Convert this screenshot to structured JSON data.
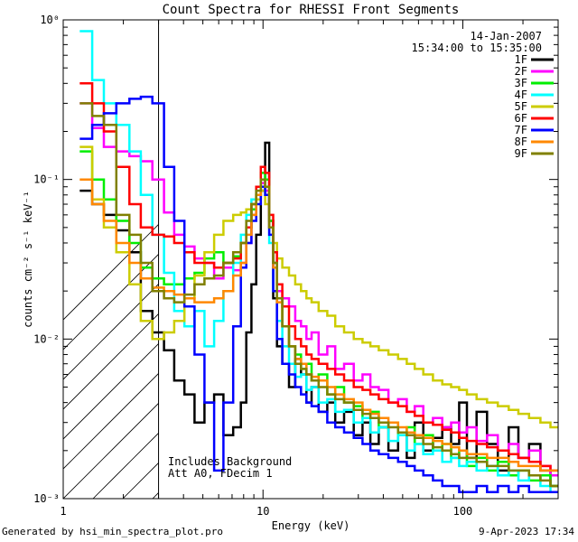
{
  "chart_data": {
    "type": "line",
    "style": "step",
    "title": "Count Spectra for RHESSI Front Segments",
    "xlabel": "Energy (keV)",
    "ylabel": "counts cm⁻² s⁻¹ keV⁻¹",
    "xscale": "log",
    "yscale": "log",
    "xlim": [
      1,
      300
    ],
    "ylim": [
      0.001,
      1
    ],
    "x_ticks": [
      {
        "value": 1,
        "label": "1"
      },
      {
        "value": 10,
        "label": "10"
      },
      {
        "value": 100,
        "label": "100"
      }
    ],
    "y_ticks": [
      {
        "value": 0.001,
        "label": "10⁻³"
      },
      {
        "value": 0.01,
        "label": "10⁻²"
      },
      {
        "value": 0.1,
        "label": "10⁻¹"
      },
      {
        "value": 1,
        "label": "10⁰"
      }
    ],
    "date": "14-Jan-2007",
    "time_range": "15:34:00 to 15:35:00",
    "annotation_lines": [
      "Includes Background",
      "Att A0, FDecim 1"
    ],
    "hatch_region": [
      1,
      3
    ],
    "series": [
      {
        "name": "1F",
        "color": "#000000",
        "x": [
          1.3,
          1.5,
          1.7,
          2.0,
          2.3,
          2.6,
          3.0,
          3.4,
          3.8,
          4.3,
          4.8,
          5.4,
          6.0,
          6.7,
          7.5,
          8.0,
          8.5,
          9.0,
          9.5,
          10.0,
          10.5,
          11.0,
          11.5,
          12.0,
          13,
          14,
          15,
          16,
          17,
          18,
          20,
          22,
          24,
          27,
          30,
          33,
          36,
          40,
          45,
          50,
          55,
          60,
          67,
          75,
          83,
          92,
          100,
          110,
          125,
          140,
          160,
          180,
          200,
          230,
          260,
          290
        ],
        "y": [
          0.085,
          0.07,
          0.06,
          0.048,
          0.035,
          0.015,
          0.011,
          0.0085,
          0.0055,
          0.0045,
          0.003,
          0.004,
          0.0045,
          0.0025,
          0.0028,
          0.004,
          0.011,
          0.022,
          0.045,
          0.085,
          0.17,
          0.055,
          0.018,
          0.009,
          0.007,
          0.005,
          0.0075,
          0.006,
          0.004,
          0.005,
          0.0035,
          0.004,
          0.003,
          0.0035,
          0.0025,
          0.003,
          0.0022,
          0.0028,
          0.002,
          0.0025,
          0.0018,
          0.003,
          0.002,
          0.0024,
          0.0028,
          0.0022,
          0.004,
          0.0018,
          0.0035,
          0.0022,
          0.0015,
          0.0028,
          0.0018,
          0.0022,
          0.0015,
          0.0012
        ]
      },
      {
        "name": "2F",
        "color": "#ff00ff",
        "x": [
          1.3,
          1.5,
          1.7,
          2.0,
          2.3,
          2.6,
          3.0,
          3.4,
          3.8,
          4.3,
          4.8,
          5.4,
          6.0,
          6.7,
          7.5,
          8.0,
          8.5,
          9.0,
          9.5,
          10.0,
          10.5,
          11.0,
          11.5,
          12.0,
          13,
          14,
          15,
          16,
          17,
          18,
          20,
          22,
          24,
          27,
          30,
          33,
          36,
          40,
          45,
          50,
          55,
          60,
          67,
          75,
          83,
          92,
          100,
          110,
          125,
          140,
          160,
          180,
          200,
          230,
          260,
          290
        ],
        "y": [
          0.3,
          0.21,
          0.16,
          0.15,
          0.14,
          0.13,
          0.1,
          0.062,
          0.045,
          0.038,
          0.032,
          0.03,
          0.024,
          0.028,
          0.027,
          0.03,
          0.04,
          0.06,
          0.08,
          0.095,
          0.085,
          0.05,
          0.028,
          0.02,
          0.018,
          0.016,
          0.013,
          0.012,
          0.01,
          0.011,
          0.008,
          0.009,
          0.0065,
          0.007,
          0.0055,
          0.006,
          0.005,
          0.0048,
          0.004,
          0.0042,
          0.0035,
          0.0038,
          0.003,
          0.0032,
          0.0028,
          0.003,
          0.0026,
          0.0028,
          0.0023,
          0.0025,
          0.002,
          0.0022,
          0.0018,
          0.002,
          0.0016,
          0.0014
        ]
      },
      {
        "name": "3F",
        "color": "#00ee00",
        "x": [
          1.3,
          1.5,
          1.7,
          2.0,
          2.3,
          2.6,
          3.0,
          3.4,
          3.8,
          4.3,
          4.8,
          5.4,
          6.0,
          6.7,
          7.5,
          8.0,
          8.5,
          9.0,
          9.5,
          10.0,
          10.5,
          11.0,
          11.5,
          12.0,
          13,
          14,
          15,
          16,
          17,
          18,
          20,
          22,
          24,
          27,
          30,
          33,
          36,
          40,
          45,
          50,
          55,
          60,
          67,
          75,
          83,
          92,
          100,
          110,
          125,
          140,
          160,
          180,
          200,
          230,
          260,
          290
        ],
        "y": [
          0.15,
          0.1,
          0.075,
          0.055,
          0.04,
          0.028,
          0.024,
          0.022,
          0.022,
          0.024,
          0.026,
          0.032,
          0.035,
          0.03,
          0.033,
          0.04,
          0.05,
          0.065,
          0.08,
          0.11,
          0.1,
          0.055,
          0.03,
          0.018,
          0.012,
          0.009,
          0.008,
          0.0065,
          0.007,
          0.0055,
          0.006,
          0.0045,
          0.005,
          0.004,
          0.0038,
          0.0032,
          0.0035,
          0.0028,
          0.003,
          0.0025,
          0.0028,
          0.0022,
          0.0025,
          0.002,
          0.0022,
          0.0018,
          0.002,
          0.0016,
          0.0018,
          0.0015,
          0.0017,
          0.0014,
          0.0015,
          0.0013,
          0.0014,
          0.0012
        ]
      },
      {
        "name": "4F",
        "color": "#00ffff",
        "x": [
          1.3,
          1.5,
          1.7,
          2.0,
          2.3,
          2.6,
          3.0,
          3.4,
          3.8,
          4.3,
          4.8,
          5.4,
          6.0,
          6.7,
          7.5,
          8.0,
          8.5,
          9.0,
          9.5,
          10.0,
          10.5,
          11.0,
          11.5,
          12.0,
          13,
          14,
          15,
          16,
          17,
          18,
          20,
          22,
          24,
          27,
          30,
          33,
          36,
          40,
          45,
          50,
          55,
          60,
          67,
          75,
          83,
          92,
          100,
          110,
          125,
          140,
          160,
          180,
          200,
          230,
          260,
          290
        ],
        "y": [
          0.85,
          0.42,
          0.3,
          0.22,
          0.15,
          0.08,
          0.045,
          0.026,
          0.015,
          0.012,
          0.015,
          0.009,
          0.013,
          0.02,
          0.03,
          0.045,
          0.06,
          0.075,
          0.09,
          0.1,
          0.08,
          0.04,
          0.02,
          0.013,
          0.009,
          0.007,
          0.0058,
          0.006,
          0.0048,
          0.005,
          0.004,
          0.0042,
          0.0035,
          0.0036,
          0.003,
          0.0032,
          0.0026,
          0.0028,
          0.0023,
          0.0025,
          0.002,
          0.0022,
          0.0019,
          0.002,
          0.0017,
          0.0018,
          0.0016,
          0.0017,
          0.0015,
          0.0016,
          0.0014,
          0.0015,
          0.0013,
          0.0014,
          0.0012,
          0.0011
        ]
      },
      {
        "name": "5F",
        "color": "#cccc00",
        "x": [
          1.3,
          1.5,
          1.7,
          2.0,
          2.3,
          2.6,
          3.0,
          3.4,
          3.8,
          4.3,
          4.8,
          5.4,
          6.0,
          6.7,
          7.5,
          8.0,
          8.5,
          9.0,
          9.5,
          10.0,
          10.5,
          11.0,
          11.5,
          12.0,
          13,
          14,
          15,
          16,
          17,
          18,
          20,
          22,
          24,
          27,
          30,
          33,
          36,
          40,
          45,
          50,
          55,
          60,
          67,
          75,
          83,
          92,
          100,
          110,
          125,
          140,
          160,
          180,
          200,
          230,
          260,
          290
        ],
        "y": [
          0.16,
          0.075,
          0.05,
          0.035,
          0.022,
          0.013,
          0.01,
          0.011,
          0.013,
          0.018,
          0.025,
          0.035,
          0.045,
          0.055,
          0.06,
          0.062,
          0.065,
          0.07,
          0.075,
          0.085,
          0.07,
          0.05,
          0.04,
          0.032,
          0.028,
          0.025,
          0.022,
          0.02,
          0.018,
          0.017,
          0.015,
          0.014,
          0.012,
          0.011,
          0.01,
          0.0095,
          0.009,
          0.0085,
          0.008,
          0.0075,
          0.007,
          0.0065,
          0.006,
          0.0055,
          0.0052,
          0.005,
          0.0048,
          0.0045,
          0.0042,
          0.004,
          0.0038,
          0.0036,
          0.0034,
          0.0032,
          0.003,
          0.0028
        ]
      },
      {
        "name": "6F",
        "color": "#ff0000",
        "x": [
          1.3,
          1.5,
          1.7,
          2.0,
          2.3,
          2.6,
          3.0,
          3.4,
          3.8,
          4.3,
          4.8,
          5.4,
          6.0,
          6.7,
          7.5,
          8.0,
          8.5,
          9.0,
          9.5,
          10.0,
          10.5,
          11.0,
          11.5,
          12.0,
          13,
          14,
          15,
          16,
          17,
          18,
          20,
          22,
          24,
          27,
          30,
          33,
          36,
          40,
          45,
          50,
          55,
          60,
          67,
          75,
          83,
          92,
          100,
          110,
          125,
          140,
          160,
          180,
          200,
          230,
          260,
          290
        ],
        "y": [
          0.4,
          0.3,
          0.2,
          0.12,
          0.07,
          0.05,
          0.045,
          0.044,
          0.04,
          0.035,
          0.03,
          0.03,
          0.028,
          0.03,
          0.032,
          0.04,
          0.05,
          0.07,
          0.09,
          0.12,
          0.11,
          0.06,
          0.035,
          0.022,
          0.016,
          0.012,
          0.01,
          0.009,
          0.008,
          0.0075,
          0.007,
          0.0065,
          0.006,
          0.0055,
          0.005,
          0.0048,
          0.0045,
          0.0042,
          0.004,
          0.0038,
          0.0035,
          0.0033,
          0.003,
          0.0029,
          0.0027,
          0.0026,
          0.0024,
          0.0023,
          0.0022,
          0.0021,
          0.002,
          0.0019,
          0.0018,
          0.0017,
          0.0016,
          0.0015
        ]
      },
      {
        "name": "7F",
        "color": "#0000ff",
        "x": [
          1.3,
          1.5,
          1.7,
          2.0,
          2.3,
          2.6,
          3.0,
          3.4,
          3.8,
          4.3,
          4.8,
          5.4,
          6.0,
          6.7,
          7.5,
          8.0,
          8.5,
          9.0,
          9.5,
          10.0,
          10.5,
          11.0,
          11.5,
          12.0,
          13,
          14,
          15,
          16,
          17,
          18,
          20,
          22,
          24,
          27,
          30,
          33,
          36,
          40,
          45,
          50,
          55,
          60,
          67,
          75,
          83,
          92,
          100,
          110,
          125,
          140,
          160,
          180,
          200,
          230,
          260,
          290
        ],
        "y": [
          0.18,
          0.22,
          0.26,
          0.3,
          0.32,
          0.33,
          0.3,
          0.12,
          0.055,
          0.016,
          0.008,
          0.004,
          0.0015,
          0.004,
          0.012,
          0.028,
          0.04,
          0.055,
          0.07,
          0.09,
          0.08,
          0.045,
          0.02,
          0.01,
          0.007,
          0.006,
          0.005,
          0.0045,
          0.004,
          0.0038,
          0.0035,
          0.003,
          0.0028,
          0.0026,
          0.0024,
          0.0022,
          0.002,
          0.0019,
          0.0018,
          0.0017,
          0.0016,
          0.0015,
          0.0014,
          0.0013,
          0.0012,
          0.0012,
          0.0011,
          0.0011,
          0.0012,
          0.0011,
          0.0012,
          0.0011,
          0.0012,
          0.0011,
          0.0011,
          0.0011
        ]
      },
      {
        "name": "8F",
        "color": "#ff8800",
        "x": [
          1.3,
          1.5,
          1.7,
          2.0,
          2.3,
          2.6,
          3.0,
          3.4,
          3.8,
          4.3,
          4.8,
          5.4,
          6.0,
          6.7,
          7.5,
          8.0,
          8.5,
          9.0,
          9.5,
          10.0,
          10.5,
          11.0,
          11.5,
          12.0,
          13,
          14,
          15,
          16,
          17,
          18,
          20,
          22,
          24,
          27,
          30,
          33,
          36,
          40,
          45,
          50,
          55,
          60,
          67,
          75,
          83,
          92,
          100,
          110,
          125,
          140,
          160,
          180,
          200,
          230,
          260,
          290
        ],
        "y": [
          0.1,
          0.07,
          0.055,
          0.04,
          0.03,
          0.024,
          0.021,
          0.02,
          0.019,
          0.018,
          0.017,
          0.017,
          0.018,
          0.02,
          0.025,
          0.03,
          0.045,
          0.06,
          0.08,
          0.1,
          0.09,
          0.05,
          0.028,
          0.017,
          0.012,
          0.009,
          0.0075,
          0.007,
          0.006,
          0.0058,
          0.0055,
          0.005,
          0.0045,
          0.0042,
          0.004,
          0.0036,
          0.0034,
          0.0032,
          0.003,
          0.0028,
          0.0026,
          0.0025,
          0.0024,
          0.0023,
          0.0022,
          0.0021,
          0.002,
          0.0019,
          0.0019,
          0.0018,
          0.0018,
          0.0017,
          0.0016,
          0.0016,
          0.0015,
          0.0015
        ]
      },
      {
        "name": "9F",
        "color": "#808000",
        "x": [
          1.3,
          1.5,
          1.7,
          2.0,
          2.3,
          2.6,
          3.0,
          3.4,
          3.8,
          4.3,
          4.8,
          5.4,
          6.0,
          6.7,
          7.5,
          8.0,
          8.5,
          9.0,
          9.5,
          10.0,
          10.5,
          11.0,
          11.5,
          12.0,
          13,
          14,
          15,
          16,
          17,
          18,
          20,
          22,
          24,
          27,
          30,
          33,
          36,
          40,
          45,
          50,
          55,
          60,
          67,
          75,
          83,
          92,
          100,
          110,
          125,
          140,
          160,
          180,
          200,
          230,
          260,
          290
        ],
        "y": [
          0.3,
          0.25,
          0.22,
          0.06,
          0.045,
          0.03,
          0.02,
          0.018,
          0.017,
          0.019,
          0.022,
          0.024,
          0.025,
          0.03,
          0.035,
          0.04,
          0.055,
          0.07,
          0.085,
          0.1,
          0.09,
          0.05,
          0.03,
          0.018,
          0.012,
          0.009,
          0.007,
          0.0065,
          0.006,
          0.0055,
          0.005,
          0.0045,
          0.0042,
          0.004,
          0.0036,
          0.0034,
          0.0032,
          0.003,
          0.0028,
          0.0026,
          0.0025,
          0.0024,
          0.0022,
          0.0021,
          0.002,
          0.0019,
          0.0018,
          0.0018,
          0.0017,
          0.0016,
          0.0016,
          0.0015,
          0.0015,
          0.0014,
          0.0013,
          0.0012
        ]
      }
    ]
  },
  "footer": {
    "generated_by": "Generated by hsi_min_spectra_plot.pro",
    "timestamp": "9-Apr-2023 17:34"
  }
}
